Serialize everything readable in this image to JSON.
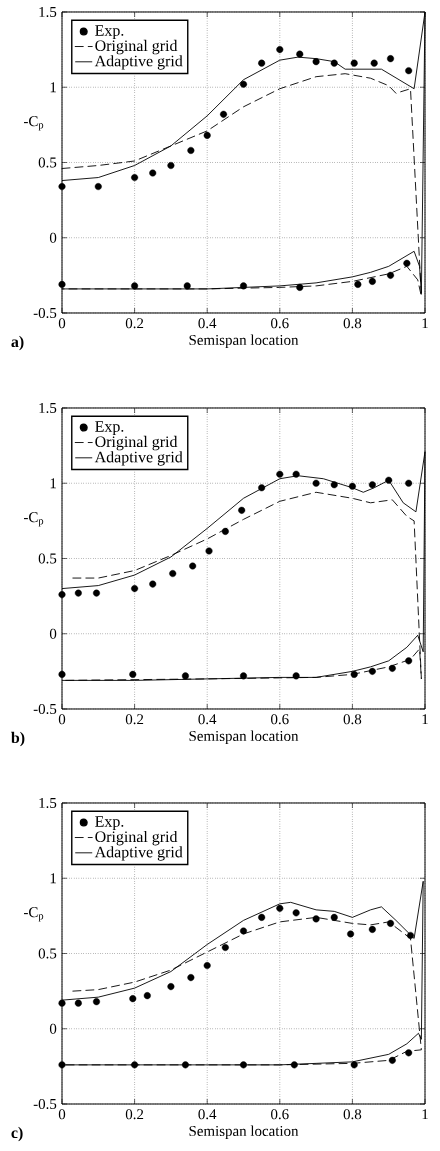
{
  "chart_data": [
    {
      "type": "line",
      "xlabel": "Semispan location",
      "ylabel": "-C$_{p}$",
      "annotations": [
        "a)"
      ],
      "xlim": [
        0,
        1
      ],
      "ylim": [
        -0.5,
        1.5
      ],
      "xticks": [
        0,
        0.2,
        0.4,
        0.6,
        0.8,
        1
      ],
      "yticks": [
        -0.5,
        0,
        0.5,
        1,
        1.5
      ],
      "grid": true,
      "legend": "top left",
      "series": [
        {
          "name": "Exp.",
          "type": "scatter",
          "marker": "circle",
          "color": "#000000",
          "x": [
            0,
            0.1,
            0.2,
            0.25,
            0.3,
            0.355,
            0.4,
            0.445,
            0.5,
            0.55,
            0.6,
            0.655,
            0.7,
            0.75,
            0.805,
            0.86,
            0.905,
            0.955,
            0,
            0.2,
            0.345,
            0.5,
            0.655,
            0.815,
            0.855,
            0.905,
            0.95
          ],
          "values": [
            0.34,
            0.34,
            0.4,
            0.43,
            0.48,
            0.58,
            0.68,
            0.82,
            1.02,
            1.16,
            1.25,
            1.22,
            1.17,
            1.16,
            1.16,
            1.16,
            1.19,
            1.11,
            -0.31,
            -0.32,
            -0.32,
            -0.32,
            -0.33,
            -0.31,
            -0.29,
            -0.25,
            -0.17
          ]
        },
        {
          "name": "Original grid",
          "line_style": "dashed",
          "color": "#000000",
          "x": [
            0,
            0.1,
            0.2,
            0.3,
            0.4,
            0.5,
            0.6,
            0.7,
            0.78,
            0.85,
            0.9,
            0.92,
            0.96,
            0.99,
            0.98,
            0.95,
            0.9,
            0.8,
            0.7,
            0.6,
            0.4,
            0
          ],
          "values": [
            0.46,
            0.48,
            0.51,
            0.61,
            0.71,
            0.87,
            0.99,
            1.07,
            1.09,
            1.06,
            1.01,
            0.96,
            0.99,
            -0.39,
            -0.28,
            -0.19,
            -0.24,
            -0.29,
            -0.32,
            -0.33,
            -0.34,
            -0.34
          ]
        },
        {
          "name": "Adaptive grid",
          "line_style": "solid",
          "color": "#000000",
          "x": [
            0,
            0.1,
            0.2,
            0.3,
            0.4,
            0.5,
            0.6,
            0.65,
            0.7,
            0.75,
            0.78,
            0.88,
            0.97,
            1,
            0.99,
            0.985,
            0.97,
            0.9,
            0.85,
            0.8,
            0.7,
            0.6,
            0.4,
            0
          ],
          "values": [
            0.38,
            0.4,
            0.48,
            0.61,
            0.81,
            1.05,
            1.18,
            1.2,
            1.19,
            1.17,
            1.12,
            1.12,
            0.99,
            1.5,
            -0.37,
            -0.19,
            -0.09,
            -0.19,
            -0.23,
            -0.26,
            -0.3,
            -0.32,
            -0.34,
            -0.34
          ]
        }
      ]
    },
    {
      "type": "line",
      "xlabel": "Semispan location",
      "ylabel": "-C$_{p}$",
      "annotations": [
        "b)"
      ],
      "xlim": [
        0,
        1
      ],
      "ylim": [
        -0.5,
        1.5
      ],
      "xticks": [
        0,
        0.2,
        0.4,
        0.6,
        0.8,
        1
      ],
      "yticks": [
        -0.5,
        0,
        0.5,
        1,
        1.5
      ],
      "grid": true,
      "legend": "top left",
      "series": [
        {
          "name": "Exp.",
          "type": "scatter",
          "marker": "circle",
          "color": "#000000",
          "x": [
            0,
            0.045,
            0.095,
            0.2,
            0.25,
            0.305,
            0.36,
            0.405,
            0.45,
            0.495,
            0.55,
            0.6,
            0.645,
            0.7,
            0.75,
            0.8,
            0.855,
            0.9,
            0.955,
            0,
            0.195,
            0.34,
            0.5,
            0.645,
            0.805,
            0.855,
            0.91,
            0.955
          ],
          "values": [
            0.26,
            0.27,
            0.27,
            0.3,
            0.33,
            0.4,
            0.45,
            0.55,
            0.68,
            0.82,
            0.97,
            1.06,
            1.06,
            1.0,
            0.99,
            0.98,
            0.99,
            1.02,
            1.0,
            -0.27,
            -0.27,
            -0.28,
            -0.28,
            -0.28,
            -0.27,
            -0.25,
            -0.23,
            -0.18
          ]
        },
        {
          "name": "Original grid",
          "line_style": "dashed",
          "color": "#000000",
          "x": [
            0.03,
            0.1,
            0.2,
            0.3,
            0.4,
            0.5,
            0.6,
            0.7,
            0.8,
            0.85,
            0.91,
            0.95,
            0.97,
            0.99,
            0.985,
            0.96,
            0.9,
            0.8,
            0.7,
            0.4,
            0
          ],
          "values": [
            0.37,
            0.37,
            0.42,
            0.52,
            0.63,
            0.76,
            0.88,
            0.94,
            0.9,
            0.87,
            0.89,
            0.78,
            0.75,
            -0.3,
            -0.1,
            -0.17,
            -0.22,
            -0.27,
            -0.29,
            -0.3,
            -0.31
          ]
        },
        {
          "name": "Adaptive grid",
          "line_style": "solid",
          "color": "#000000",
          "x": [
            0,
            0.1,
            0.2,
            0.3,
            0.4,
            0.5,
            0.6,
            0.65,
            0.72,
            0.8,
            0.83,
            0.86,
            0.9,
            0.94,
            0.975,
            1,
            0.995,
            0.98,
            0.95,
            0.9,
            0.85,
            0.8,
            0.7,
            0.6,
            0.2,
            0
          ],
          "values": [
            0.3,
            0.32,
            0.39,
            0.51,
            0.7,
            0.9,
            1.03,
            1.05,
            1.03,
            0.97,
            0.94,
            0.97,
            1.02,
            0.87,
            0.81,
            1.21,
            -0.12,
            -0.01,
            -0.09,
            -0.18,
            -0.22,
            -0.25,
            -0.29,
            -0.29,
            -0.31,
            -0.31
          ]
        }
      ]
    },
    {
      "type": "line",
      "xlabel": "Semispan location",
      "ylabel": "-C$_{p}$",
      "annotations": [
        "c)"
      ],
      "xlim": [
        0,
        1
      ],
      "ylim": [
        -0.5,
        1.5
      ],
      "xticks": [
        0,
        0.2,
        0.4,
        0.6,
        0.8,
        1
      ],
      "yticks": [
        -0.5,
        0,
        0.5,
        1,
        1.5
      ],
      "grid": true,
      "legend": "top left",
      "series": [
        {
          "name": "Exp.",
          "type": "scatter",
          "marker": "circle",
          "color": "#000000",
          "x": [
            0,
            0.045,
            0.095,
            0.195,
            0.235,
            0.3,
            0.355,
            0.4,
            0.45,
            0.5,
            0.55,
            0.6,
            0.645,
            0.7,
            0.75,
            0.795,
            0.855,
            0.905,
            0.96,
            0,
            0.2,
            0.34,
            0.5,
            0.64,
            0.805,
            0.91,
            0.955
          ],
          "values": [
            0.17,
            0.17,
            0.18,
            0.2,
            0.22,
            0.28,
            0.34,
            0.42,
            0.54,
            0.65,
            0.74,
            0.8,
            0.77,
            0.73,
            0.74,
            0.63,
            0.66,
            0.7,
            0.62,
            -0.24,
            -0.24,
            -0.24,
            -0.24,
            -0.24,
            -0.24,
            -0.21,
            -0.16
          ]
        },
        {
          "name": "Original grid",
          "line_style": "dashed",
          "color": "#000000",
          "x": [
            0.03,
            0.1,
            0.2,
            0.3,
            0.4,
            0.5,
            0.6,
            0.7,
            0.8,
            0.85,
            0.9,
            0.96,
            0.99,
            0.95,
            0.9,
            0.8,
            0.6,
            0
          ],
          "values": [
            0.25,
            0.26,
            0.31,
            0.39,
            0.51,
            0.63,
            0.71,
            0.74,
            0.7,
            0.69,
            0.71,
            0.6,
            -0.14,
            -0.15,
            -0.21,
            -0.23,
            -0.24,
            -0.24
          ]
        },
        {
          "name": "Adaptive grid",
          "line_style": "solid",
          "color": "#000000",
          "x": [
            0,
            0.1,
            0.2,
            0.3,
            0.4,
            0.5,
            0.6,
            0.63,
            0.7,
            0.75,
            0.8,
            0.85,
            0.88,
            0.92,
            0.97,
            0.995,
            0.99,
            0.982,
            0.95,
            0.9,
            0.8,
            0.7,
            0.6,
            0
          ],
          "values": [
            0.19,
            0.21,
            0.27,
            0.38,
            0.56,
            0.72,
            0.83,
            0.84,
            0.79,
            0.78,
            0.74,
            0.79,
            0.81,
            0.72,
            0.6,
            0.98,
            -0.07,
            -0.03,
            -0.1,
            -0.17,
            -0.22,
            -0.23,
            -0.24,
            -0.24
          ]
        }
      ]
    }
  ]
}
